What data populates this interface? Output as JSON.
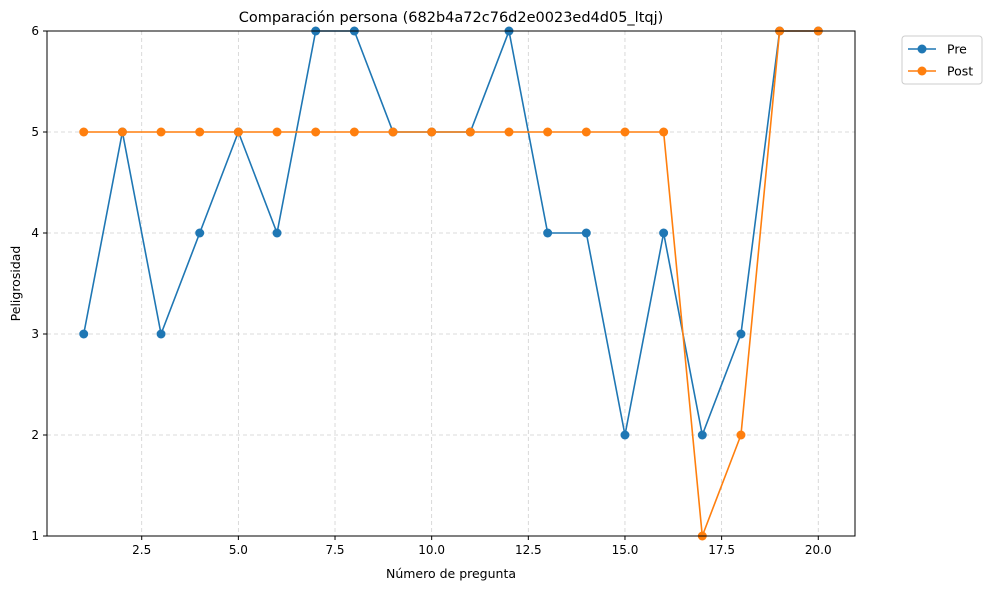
{
  "chart_data": {
    "type": "line",
    "title": "Comparación persona (682b4a72c76d2e0023ed4d05_ltqj)",
    "xlabel": "Número de pregunta",
    "ylabel": "Peligrosidad",
    "xlim": [
      0.05,
      20.95
    ],
    "ylim": [
      1,
      6
    ],
    "x_ticks": [
      2.5,
      5.0,
      7.5,
      10.0,
      12.5,
      15.0,
      17.5,
      20.0
    ],
    "x_tick_labels": [
      "2.5",
      "5.0",
      "7.5",
      "10.0",
      "12.5",
      "15.0",
      "17.5",
      "20.0"
    ],
    "y_ticks": [
      1,
      2,
      3,
      4,
      5,
      6
    ],
    "y_tick_labels": [
      "1",
      "2",
      "3",
      "4",
      "5",
      "6"
    ],
    "grid": true,
    "legend_position": "outside-top-right",
    "x": [
      1,
      2,
      3,
      4,
      5,
      6,
      7,
      8,
      9,
      10,
      11,
      12,
      13,
      14,
      15,
      16,
      17,
      18,
      19,
      20
    ],
    "series": [
      {
        "name": "Pre",
        "color": "#1f77b4",
        "values": [
          3,
          5,
          3,
          4,
          5,
          4,
          6,
          6,
          5,
          5,
          5,
          6,
          4,
          4,
          2,
          4,
          2,
          3,
          6,
          6
        ]
      },
      {
        "name": "Post",
        "color": "#ff7f0e",
        "values": [
          5,
          5,
          5,
          5,
          5,
          5,
          5,
          5,
          5,
          5,
          5,
          5,
          5,
          5,
          5,
          5,
          1,
          2,
          6,
          6
        ]
      }
    ]
  }
}
